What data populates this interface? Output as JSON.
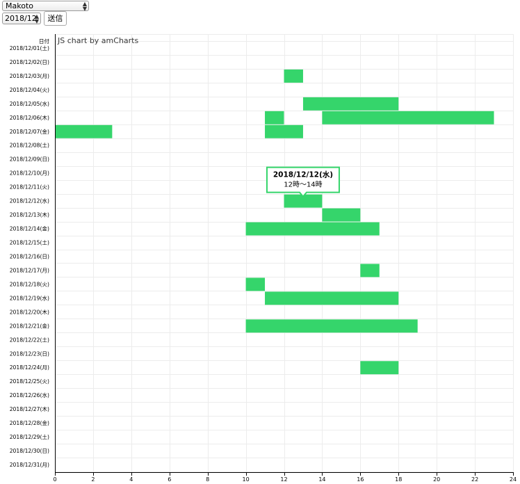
{
  "controls": {
    "user_select_value": "Makoto",
    "month_select_value": "2018/12",
    "submit_label": "送信"
  },
  "chart_data": {
    "type": "bar",
    "orientation": "horizontal",
    "ylabel": "日付",
    "credit": "JS chart by amCharts",
    "categories": [
      "2018/12/01(土)",
      "2018/12/02(日)",
      "2018/12/03(月)",
      "2018/12/04(火)",
      "2018/12/05(水)",
      "2018/12/06(木)",
      "2018/12/07(金)",
      "2018/12/08(土)",
      "2018/12/09(日)",
      "2018/12/10(月)",
      "2018/12/11(火)",
      "2018/12/12(水)",
      "2018/12/13(木)",
      "2018/12/14(金)",
      "2018/12/15(土)",
      "2018/12/16(日)",
      "2018/12/17(月)",
      "2018/12/18(火)",
      "2018/12/19(水)",
      "2018/12/20(木)",
      "2018/12/21(金)",
      "2018/12/22(土)",
      "2018/12/23(日)",
      "2018/12/24(月)",
      "2018/12/25(火)",
      "2018/12/26(水)",
      "2018/12/27(木)",
      "2018/12/28(金)",
      "2018/12/29(土)",
      "2018/12/30(日)",
      "2018/12/31(月)"
    ],
    "xlim": [
      0,
      24
    ],
    "xticks": [
      "0",
      "2",
      "4",
      "6",
      "8",
      "10",
      "12",
      "14",
      "16",
      "18",
      "20",
      "22",
      "24"
    ],
    "grid": true,
    "bar_color": "#35d56b",
    "bars": [
      {
        "row": 2,
        "start": 12,
        "end": 13
      },
      {
        "row": 4,
        "start": 13,
        "end": 18
      },
      {
        "row": 5,
        "start": 11,
        "end": 12
      },
      {
        "row": 5,
        "start": 14,
        "end": 23
      },
      {
        "row": 6,
        "start": 0,
        "end": 3
      },
      {
        "row": 6,
        "start": 11,
        "end": 13
      },
      {
        "row": 11,
        "start": 12,
        "end": 14
      },
      {
        "row": 12,
        "start": 14,
        "end": 16
      },
      {
        "row": 13,
        "start": 10,
        "end": 17
      },
      {
        "row": 16,
        "start": 16,
        "end": 17
      },
      {
        "row": 17,
        "start": 10,
        "end": 11
      },
      {
        "row": 18,
        "start": 11,
        "end": 18
      },
      {
        "row": 20,
        "start": 10,
        "end": 19
      },
      {
        "row": 23,
        "start": 16,
        "end": 18
      }
    ],
    "tooltip": {
      "title": "2018/12/12(水)",
      "text": "12時〜14時",
      "border_color": "#35d56b"
    }
  }
}
